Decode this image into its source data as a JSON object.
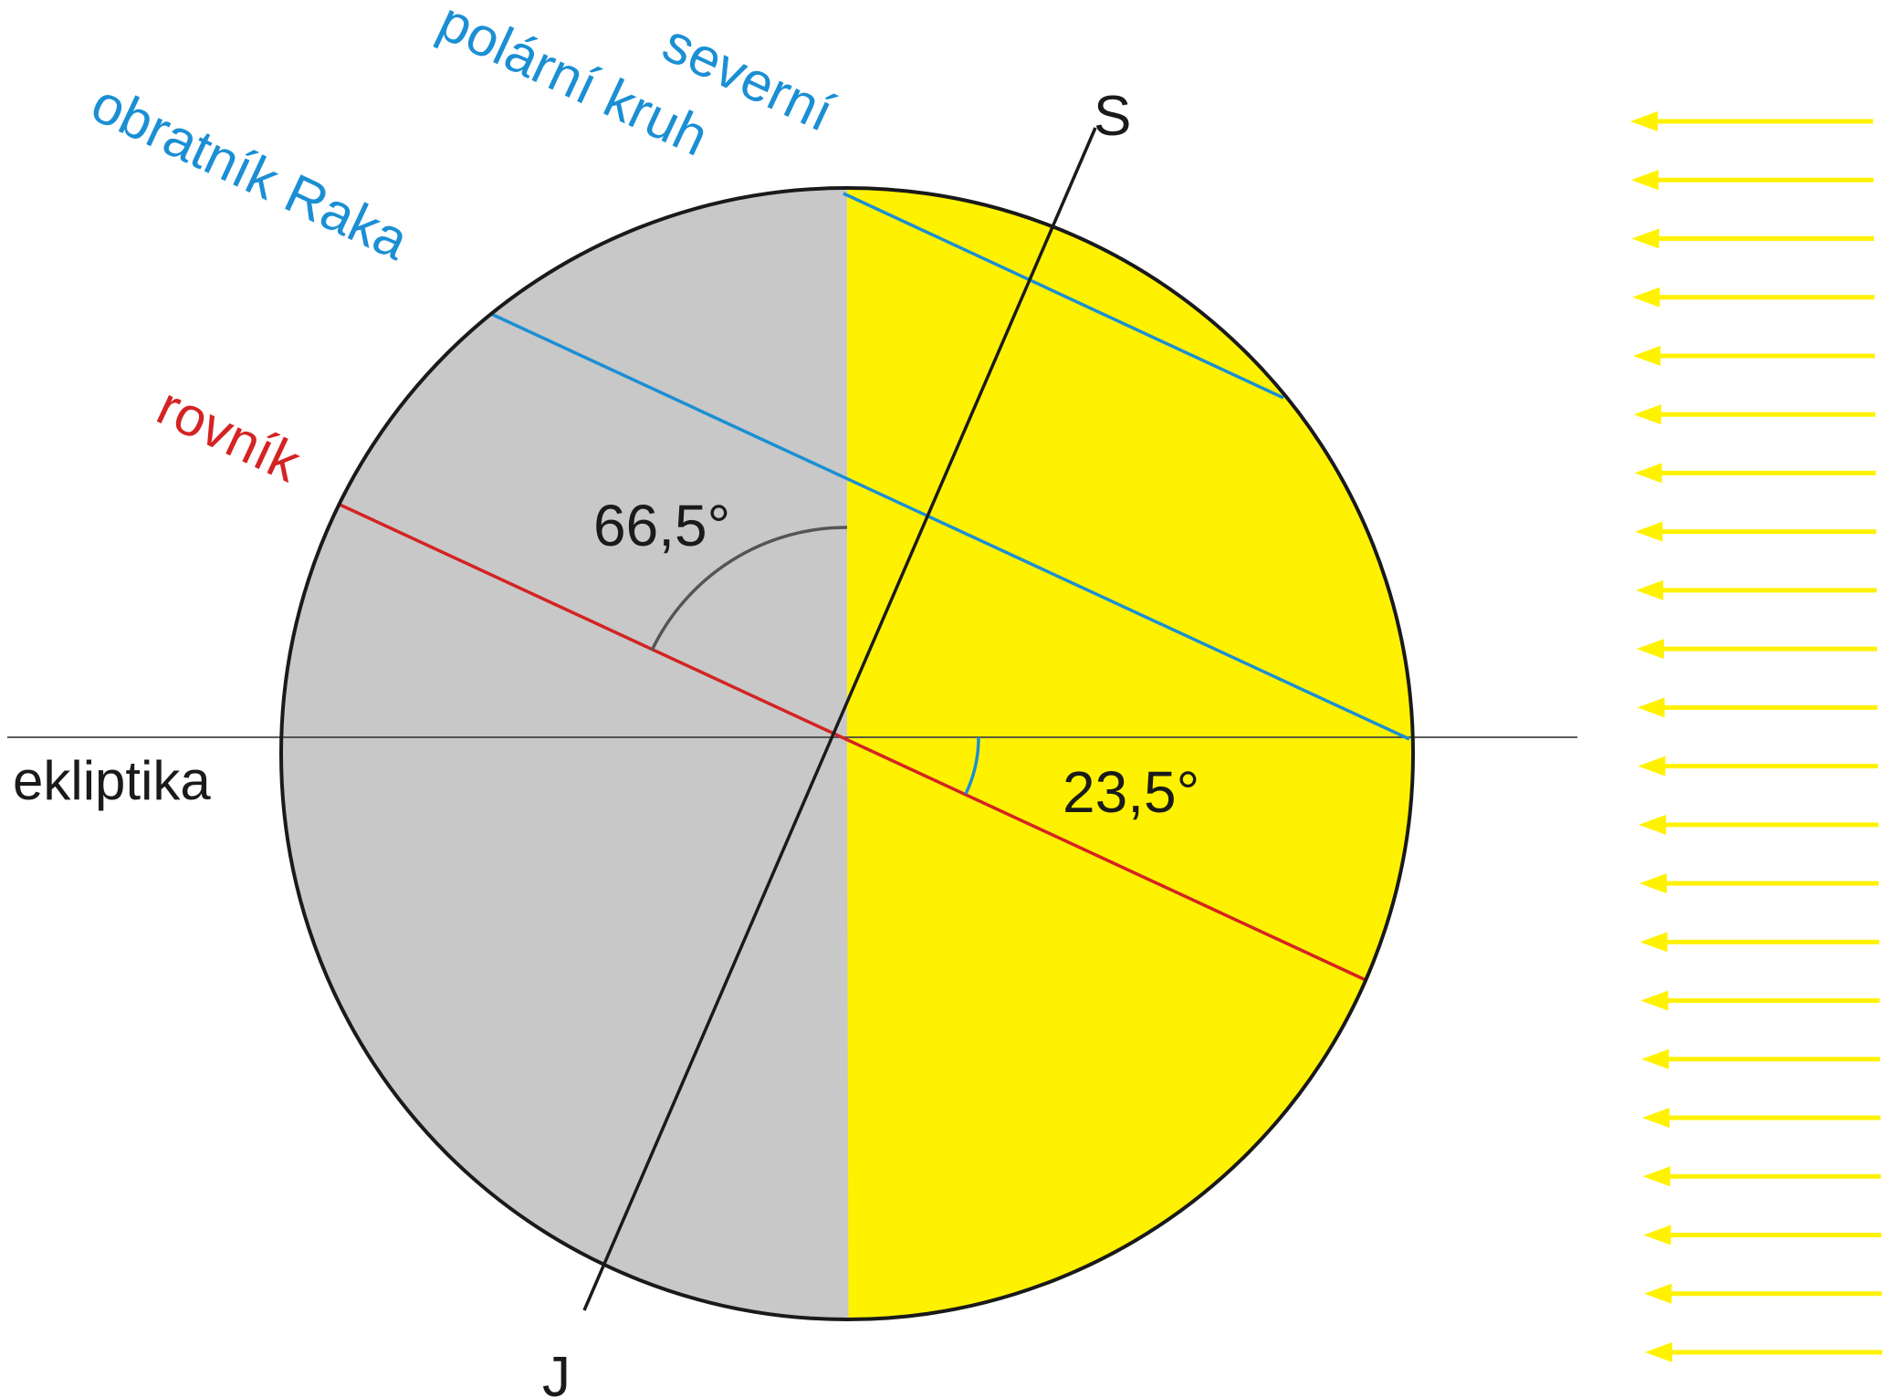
{
  "labels": {
    "north_pole": "S",
    "south_pole": "J",
    "ecliptic": "ekliptika",
    "equator": "rovník",
    "tropic_of_cancer": "obratník Raka",
    "arctic_circle_line1": "severní",
    "arctic_circle_line2": "polární kruh",
    "angle_large": "66,5°",
    "angle_small": "23,5°"
  },
  "colors": {
    "day_side": "#fff200",
    "night_side": "#c8c8c8",
    "outline": "#1a1a1a",
    "equator": "#d42323",
    "tropic_and_arctic": "#1b8fd4",
    "sun_rays": "#fff200",
    "angle_arc_large": "#555555",
    "angle_arc_small": "#1b8fd4",
    "ecliptic_line": "#444444"
  },
  "sun_rays": {
    "count": 22,
    "direction": "right-to-left"
  },
  "axis_tilt_deg": 23.5
}
